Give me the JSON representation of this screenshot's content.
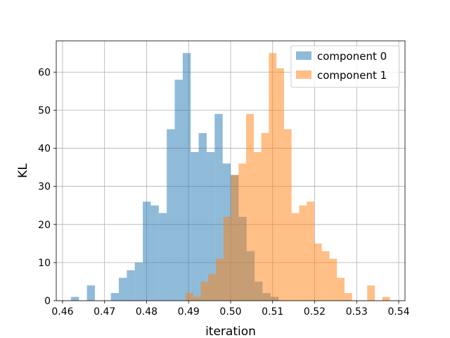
{
  "chart_data": {
    "type": "bar",
    "subtype": "overlaid-histogram",
    "title": "",
    "xlabel": "iteration",
    "ylabel": "KL",
    "xlim": [
      0.4585,
      0.5415
    ],
    "ylim": [
      0,
      68.2
    ],
    "xticks": [
      0.46,
      0.47,
      0.48,
      0.49,
      0.5,
      0.51,
      0.52,
      0.53,
      0.54
    ],
    "xtick_labels": [
      "0.46",
      "0.47",
      "0.48",
      "0.49",
      "0.50",
      "0.51",
      "0.52",
      "0.53",
      "0.54"
    ],
    "yticks": [
      0,
      10,
      20,
      30,
      40,
      50,
      60
    ],
    "ytick_labels": [
      "0",
      "10",
      "20",
      "30",
      "40",
      "50",
      "60"
    ],
    "grid": true,
    "legend_position": "top-right",
    "series": [
      {
        "name": "component 0",
        "color": "#1f77b4",
        "alpha": 0.5,
        "bin_edges": [
          0.462,
          0.4639,
          0.4658,
          0.4677,
          0.4696,
          0.4715,
          0.4734,
          0.4753,
          0.4772,
          0.4791,
          0.481,
          0.4829,
          0.4848,
          0.4867,
          0.4886,
          0.4905,
          0.4924,
          0.4943,
          0.4962,
          0.4981,
          0.5,
          0.5019,
          0.5038,
          0.5057,
          0.5076,
          0.5095,
          0.5114
        ],
        "counts": [
          1,
          0,
          4,
          0,
          0,
          2,
          6,
          8,
          10,
          26,
          25,
          23,
          45,
          58,
          65,
          39,
          44,
          39,
          49,
          36,
          33,
          22,
          13,
          5,
          2,
          1
        ]
      },
      {
        "name": "component 1",
        "color": "#ff7f0e",
        "alpha": 0.5,
        "bin_edges": [
          0.4893,
          0.4911,
          0.4929,
          0.4947,
          0.4965,
          0.4983,
          0.5001,
          0.5019,
          0.5037,
          0.5055,
          0.5073,
          0.5091,
          0.5109,
          0.5127,
          0.5145,
          0.5163,
          0.5181,
          0.5199,
          0.5217,
          0.5235,
          0.5253,
          0.5271,
          0.5289,
          0.5307,
          0.5325,
          0.5343,
          0.5361,
          0.5379
        ],
        "counts": [
          2,
          1,
          5,
          7,
          11,
          22,
          33,
          36,
          49,
          39,
          44,
          65,
          61,
          45,
          23,
          25,
          26,
          15,
          13,
          11,
          6,
          2,
          0,
          0,
          4,
          0,
          1
        ]
      }
    ]
  }
}
